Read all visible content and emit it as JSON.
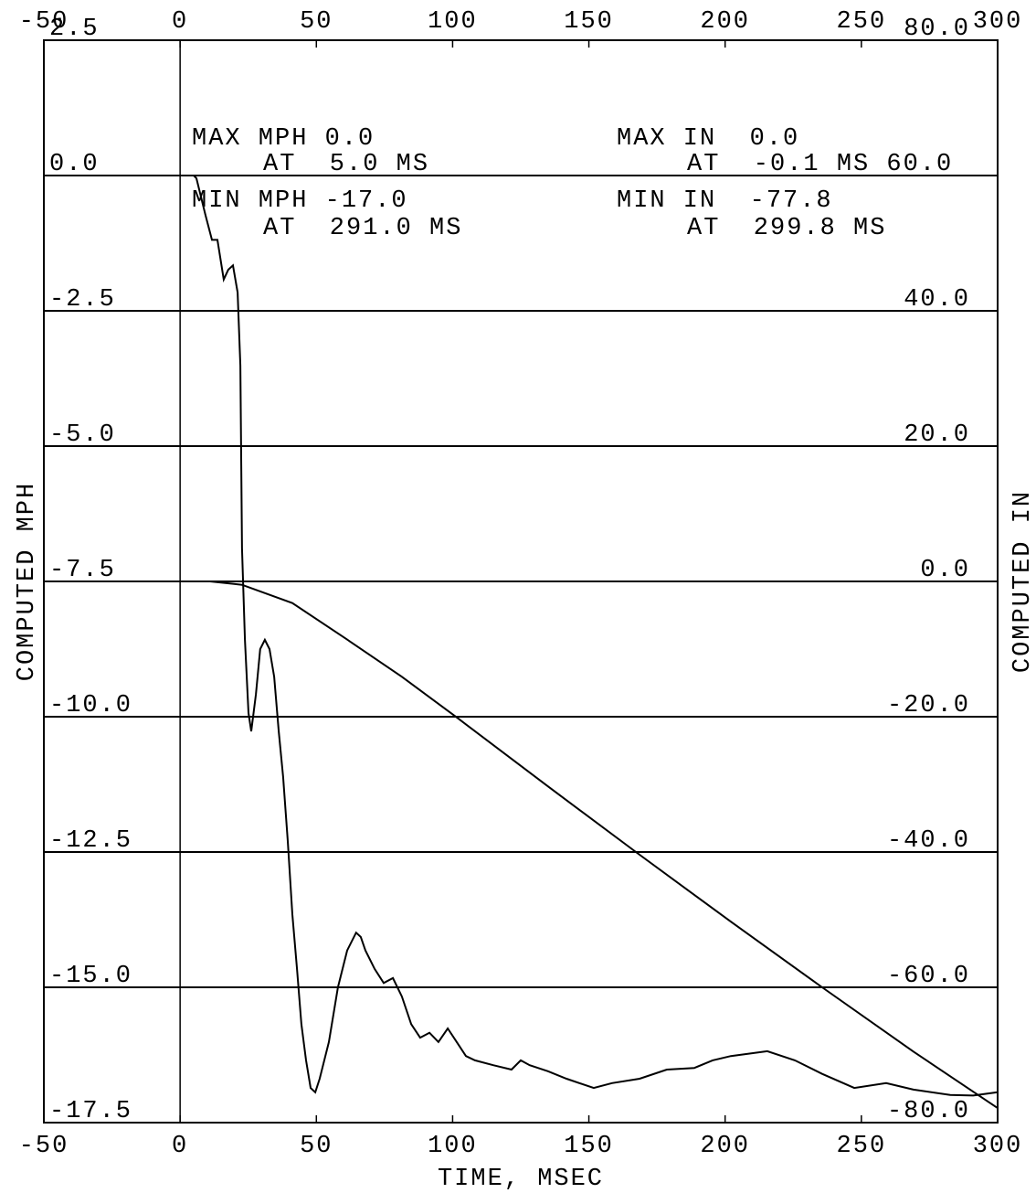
{
  "chart_data": {
    "type": "line",
    "x_label": "TIME, MSEC",
    "y_label": "COMPUTED MPH",
    "y2_label": "COMPUTED IN",
    "annotations": [
      "MAX MPH 0.0",
      "AT  5.0 MS",
      "MIN MPH -17.0",
      "AT  291.0 MS",
      "MAX IN  0.0",
      "AT  -0.1 MS 60.0",
      "MIN IN  -77.8",
      "AT  299.8 MS"
    ],
    "xlim": [
      -50,
      300
    ],
    "xticks": [
      -50,
      0,
      50,
      100,
      150,
      200,
      250,
      300
    ],
    "ylim": [
      -17.5,
      2.5
    ],
    "yticks": [
      2.5,
      {
        "value": 0,
        "label": "0.0"
      },
      -2.5,
      {
        "value": -5,
        "label": "-5.0"
      },
      -7.5,
      {
        "value": -10,
        "label": "-10.0"
      },
      -12.5,
      {
        "value": -15,
        "label": "-15.0"
      },
      -17.5
    ],
    "y2lim": [
      -80,
      80
    ],
    "y2ticks": [
      {
        "value": 80,
        "label": "80.0"
      },
      {
        "value": 40,
        "label": "40.0"
      },
      {
        "value": 20,
        "label": "20.0"
      },
      {
        "value": 0,
        "label": "0.0"
      },
      {
        "value": -20,
        "label": "-20.0"
      },
      {
        "value": -40,
        "label": "-40.0"
      },
      {
        "value": -60,
        "label": "-60.0"
      },
      {
        "value": -80,
        "label": "-80.0"
      }
    ],
    "grid": true,
    "series": [
      {
        "name": "MPH",
        "color": "#000000",
        "x": [
          5,
          6,
          9.3,
          11.7,
          13.7,
          16,
          17.7,
          19.4,
          21.1,
          22.1,
          22.7,
          23.8,
          25.1,
          26.1,
          27.8,
          29.4,
          31.1,
          32.8,
          34.5,
          36.2,
          37.8,
          39.5,
          41.2,
          42.9,
          44.5,
          46.2,
          47.9,
          49.6,
          51.2,
          54.6,
          57.9,
          61.3,
          64.6,
          66.3,
          68,
          71.4,
          74.7,
          78.1,
          81.4,
          84.8,
          88.1,
          91.5,
          94.8,
          98.2,
          101.5,
          104.9,
          108.2,
          114.9,
          121.6,
          125,
          128.3,
          135,
          141.8,
          151.8,
          158.5,
          168.6,
          178.6,
          188.7,
          195.4,
          202.1,
          215.5,
          225.6,
          235.6,
          247.4,
          259.1,
          269.1,
          282.6,
          291,
          300
        ],
        "values": [
          0,
          -0.05,
          -0.73,
          -1.19,
          -1.19,
          -1.92,
          -1.74,
          -1.66,
          -2.16,
          -3.51,
          -6.89,
          -8.58,
          -9.93,
          -10.27,
          -9.59,
          -8.75,
          -8.58,
          -8.75,
          -9.26,
          -10.27,
          -11.11,
          -12.3,
          -13.65,
          -14.66,
          -15.68,
          -16.35,
          -16.86,
          -16.94,
          -16.69,
          -16.01,
          -15,
          -14.32,
          -13.99,
          -14.07,
          -14.32,
          -14.66,
          -14.92,
          -14.83,
          -15.17,
          -15.68,
          -15.93,
          -15.84,
          -16.01,
          -15.76,
          -16.01,
          -16.27,
          -16.35,
          -16.44,
          -16.52,
          -16.35,
          -16.44,
          -16.55,
          -16.69,
          -16.86,
          -16.77,
          -16.69,
          -16.52,
          -16.49,
          -16.35,
          -16.27,
          -16.18,
          -16.35,
          -16.6,
          -16.86,
          -16.77,
          -16.89,
          -16.99,
          -17.0,
          -16.94
        ]
      },
      {
        "name": "IN",
        "color": "#000000",
        "axis": "y2",
        "x": [
          0,
          11,
          22.7,
          41.2,
          61.3,
          81.4,
          101.5,
          135,
          168.6,
          202.1,
          235.6,
          269.1,
          299.8
        ],
        "values": [
          0,
          0,
          -0.5,
          -3.2,
          -8.6,
          -14.1,
          -20.1,
          -30.3,
          -40.4,
          -50.3,
          -60,
          -69.5,
          -77.8
        ]
      }
    ]
  }
}
